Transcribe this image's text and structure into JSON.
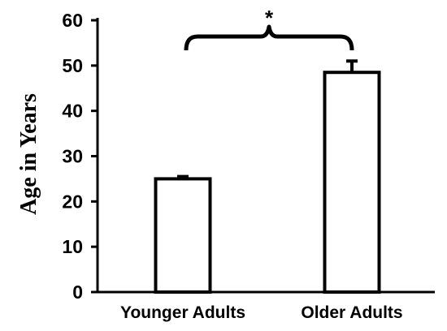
{
  "chart_data": {
    "type": "bar",
    "categories": [
      "Younger Adults",
      "Older Adults"
    ],
    "values": [
      25,
      48.5
    ],
    "error": [
      0.5,
      2.5
    ],
    "ylabel": "Age in Years",
    "xlabel": "",
    "ylim": [
      0,
      60
    ],
    "yticks": [
      0,
      10,
      20,
      30,
      40,
      50,
      60
    ],
    "grid": false,
    "bar_fill": "#ffffff",
    "bar_stroke": "#000000",
    "annotation": {
      "text": "*",
      "type": "significance-bracket",
      "between": [
        "Younger Adults",
        "Older Adults"
      ]
    }
  }
}
